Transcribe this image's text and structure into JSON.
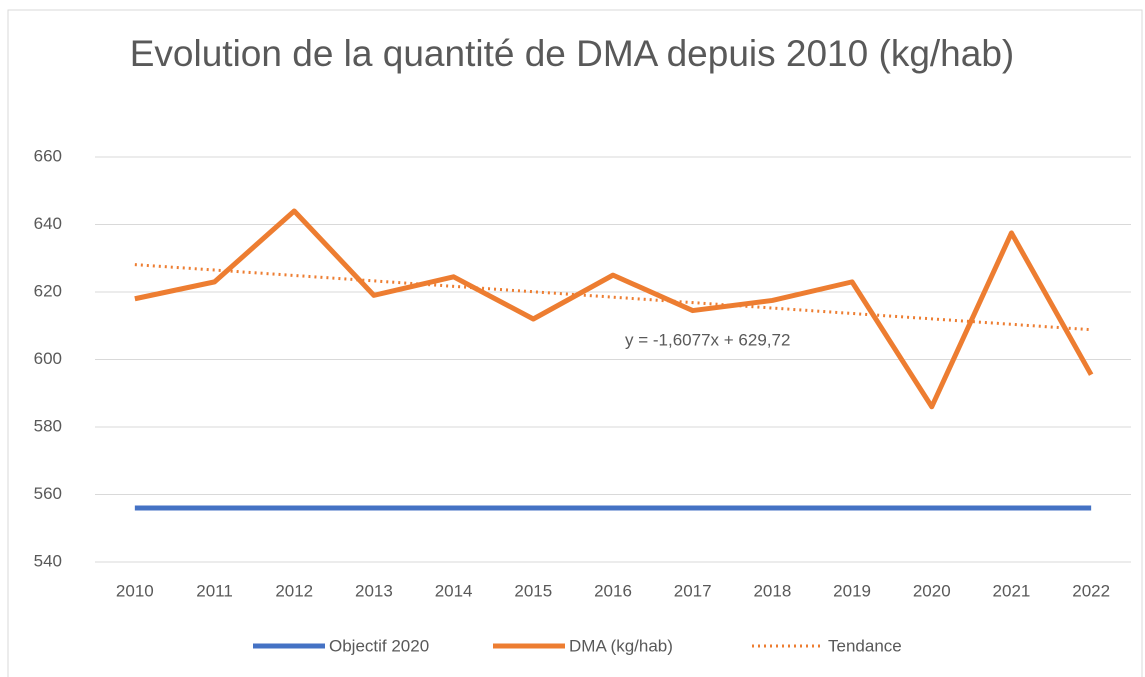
{
  "chart_data": {
    "type": "line",
    "title": "Evolution de la quantité de DMA depuis 2010 (kg/hab)",
    "categories": [
      "2010",
      "2011",
      "2012",
      "2013",
      "2014",
      "2015",
      "2016",
      "2017",
      "2018",
      "2019",
      "2020",
      "2021",
      "2022"
    ],
    "series": [
      {
        "name": "Objectif 2020",
        "color": "#4472c4",
        "style": "solid",
        "values": [
          556,
          556,
          556,
          556,
          556,
          556,
          556,
          556,
          556,
          556,
          556,
          556,
          556
        ]
      },
      {
        "name": "DMA (kg/hab)",
        "color": "#ed7d31",
        "style": "solid",
        "values": [
          618,
          623,
          644,
          619,
          624.5,
          612,
          625,
          614.5,
          617.5,
          623,
          586,
          637.5,
          595.5
        ]
      },
      {
        "name": "Tendance",
        "color": "#ed7d31",
        "style": "dotted",
        "values": [
          628.11,
          626.51,
          624.9,
          623.29,
          621.68,
          620.07,
          618.47,
          616.86,
          615.25,
          613.64,
          612.04,
          610.43,
          608.82
        ]
      }
    ],
    "annotation": "y = -1,6077x + 629,72",
    "ylim": [
      540,
      660
    ],
    "yticks": [
      540,
      560,
      580,
      600,
      620,
      640,
      660
    ],
    "grid": true,
    "legend": "bottom"
  }
}
